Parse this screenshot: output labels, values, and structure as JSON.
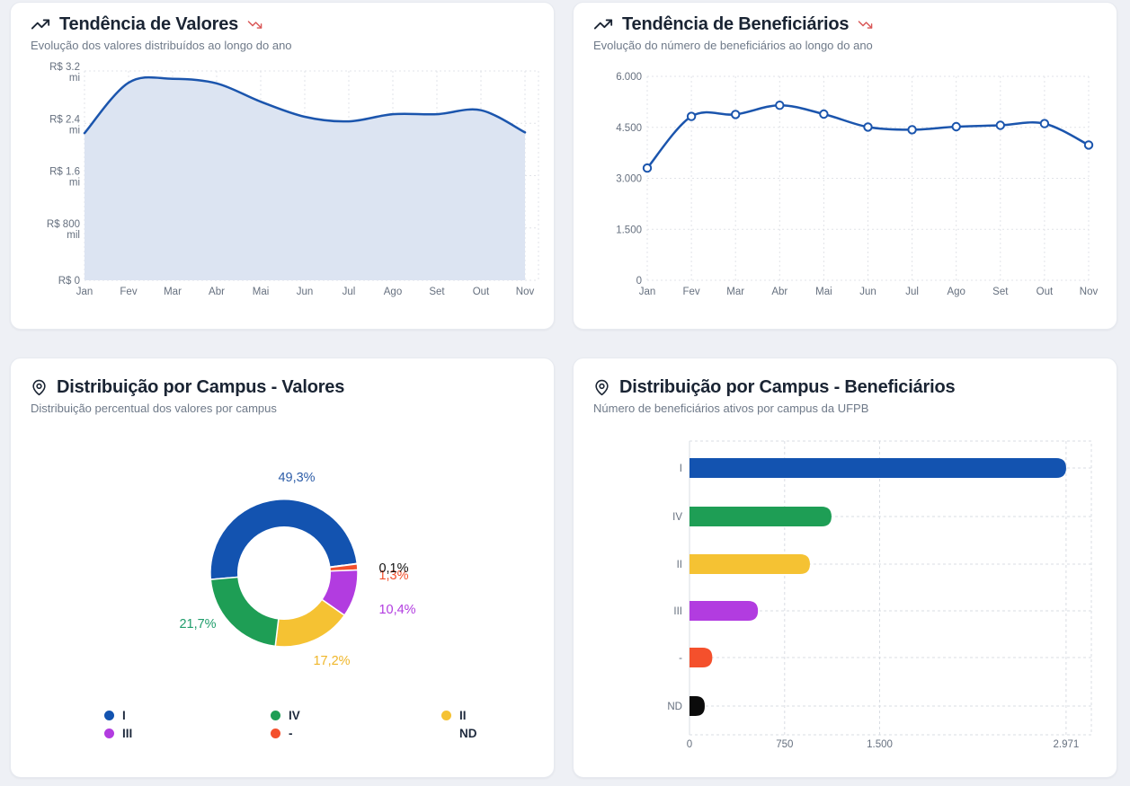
{
  "page": {
    "background": "#eef0f5",
    "accent_blue": "#1653b0",
    "trend_down_red": "#d95757"
  },
  "cards": [
    {
      "id": "trend-valores",
      "title": "Tendência de Valores",
      "subtitle": "Evolução dos valores distribuídos ao longo do ano"
    },
    {
      "id": "trend-beneficiarios",
      "title": "Tendência de Beneficiários",
      "subtitle": "Evolução do número de beneficiários ao longo do ano"
    },
    {
      "id": "dist-valores",
      "title": "Distribuição por Campus - Valores",
      "subtitle": "Distribuição percentual dos valores por campus"
    },
    {
      "id": "dist-beneficiarios",
      "title": "Distribuição por Campus - Beneficiários",
      "subtitle": "Número de beneficiários ativos por campus da UFPB"
    }
  ],
  "chart_data": [
    {
      "type": "area",
      "title": "Tendência de Valores",
      "categories": [
        "Jan",
        "Fev",
        "Mar",
        "Abr",
        "Mai",
        "Jun",
        "Jul",
        "Ago",
        "Set",
        "Out",
        "Nov"
      ],
      "values": [
        2250000,
        3020000,
        3080000,
        3010000,
        2730000,
        2500000,
        2430000,
        2540000,
        2540000,
        2600000,
        2260000
      ],
      "ylim": [
        0,
        3200000
      ],
      "yticks": {
        "values": [
          0,
          800000,
          1600000,
          2400000,
          3200000
        ],
        "labels": [
          [
            "R$ 0"
          ],
          [
            "R$ 800",
            "mil"
          ],
          [
            "R$ 1.6",
            "mi"
          ],
          [
            "R$ 2.4",
            "mi"
          ],
          [
            "R$ 3.2",
            "mi"
          ]
        ]
      },
      "line_color": "#1b55ad",
      "fill_color": "#dce4f2",
      "grid": true,
      "legend": "none"
    },
    {
      "type": "line",
      "title": "Tendência de Beneficiários",
      "categories": [
        "Jan",
        "Fev",
        "Mar",
        "Abr",
        "Mai",
        "Jun",
        "Jul",
        "Ago",
        "Set",
        "Out",
        "Nov"
      ],
      "values": [
        3300,
        4820,
        4880,
        5150,
        4890,
        4510,
        4430,
        4520,
        4560,
        4610,
        3980
      ],
      "ylim": [
        0,
        6000
      ],
      "yticks": {
        "values": [
          0,
          1500,
          3000,
          4500,
          6000
        ],
        "labels": [
          [
            "0"
          ],
          [
            "1.500"
          ],
          [
            "3.000"
          ],
          [
            "4.500"
          ],
          [
            "6.000"
          ]
        ]
      },
      "line_color": "#1b55ad",
      "markers": "open-circle",
      "grid": true,
      "legend": "none"
    },
    {
      "type": "pie",
      "title": "Distribuição por Campus - Valores",
      "donut": true,
      "slices": [
        {
          "label": "I",
          "value": 49.3,
          "display": "49,3%",
          "color": "#1353b0",
          "label_color": "#2d5da8"
        },
        {
          "label": "IV",
          "value": 21.7,
          "display": "21,7%",
          "color": "#1e9e55",
          "label_color": "#1f9d6b"
        },
        {
          "label": "II",
          "value": 17.2,
          "display": "17,2%",
          "color": "#f5c233",
          "label_color": "#efb62a"
        },
        {
          "label": "III",
          "value": 10.4,
          "display": "10,4%",
          "color": "#b23ce0",
          "label_color": "#b23ce0"
        },
        {
          "label": "-",
          "value": 1.3,
          "display": "1,3%",
          "color": "#f4502c",
          "label_color": "#f4502c"
        },
        {
          "label": "ND",
          "value": 0.1,
          "display": "0,1%",
          "color": "#111111",
          "label_color": "#111111"
        }
      ],
      "legend": [
        {
          "label": "I",
          "color": "#1353b0"
        },
        {
          "label": "IV",
          "color": "#1e9e55"
        },
        {
          "label": "II",
          "color": "#f5c233"
        },
        {
          "label": "III",
          "color": "#b23ce0"
        },
        {
          "label": "-",
          "color": "#f4502c"
        },
        {
          "label": "ND",
          "color": "#ffffff"
        }
      ],
      "legend_position": "bottom"
    },
    {
      "type": "bar",
      "orientation": "horizontal",
      "title": "Distribuição por Campus - Beneficiários",
      "categories": [
        "I",
        "IV",
        "II",
        "III",
        "-",
        "ND"
      ],
      "values": [
        2971,
        1120,
        950,
        540,
        180,
        120
      ],
      "colors": [
        "#1353b0",
        "#1e9e55",
        "#f5c233",
        "#b23ce0",
        "#f4502c",
        "#0b0b0b"
      ],
      "xlim": [
        0,
        3170
      ],
      "xticks": {
        "values": [
          0,
          750,
          1500,
          2971
        ],
        "labels": [
          "0",
          "750",
          "1.500",
          "2.971"
        ]
      },
      "grid": "dashed",
      "legend": "none"
    }
  ]
}
